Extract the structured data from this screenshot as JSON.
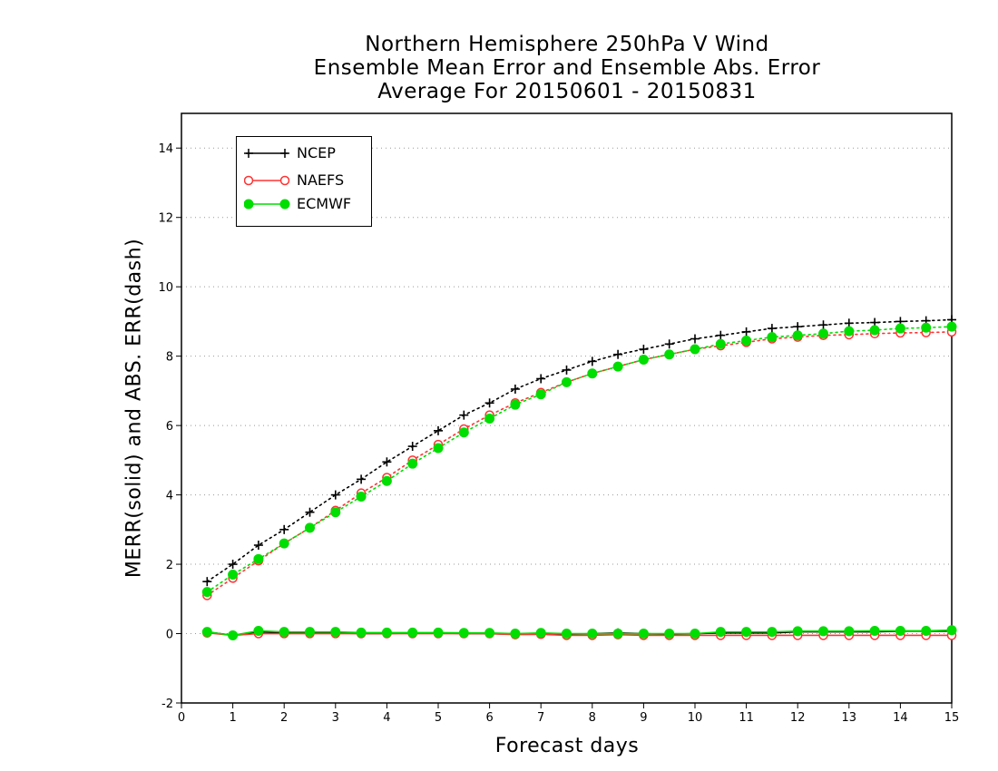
{
  "chart_data": {
    "type": "line",
    "title": [
      "Northern Hemisphere 250hPa V Wind",
      "Ensemble Mean Error and Ensemble Abs. Error",
      "Average For 20150601 - 20150831"
    ],
    "xlabel": "Forecast days",
    "ylabel": "MERR(solid) and ABS. ERR(dash)",
    "xlim": [
      0,
      15
    ],
    "ylim": [
      -2,
      15
    ],
    "xticks": [
      0,
      1,
      2,
      3,
      4,
      5,
      6,
      7,
      8,
      9,
      10,
      11,
      12,
      13,
      14,
      15
    ],
    "yticks": [
      -2,
      0,
      2,
      4,
      6,
      8,
      10,
      12,
      14
    ],
    "ytick_labels": [
      "-2",
      "0",
      "2",
      "4",
      "6",
      "8",
      "10",
      "12",
      "14"
    ],
    "grid": "horizontal dotted",
    "legend_position": "top-left",
    "x": [
      0.5,
      1,
      1.5,
      2,
      2.5,
      3,
      3.5,
      4,
      4.5,
      5,
      5.5,
      6,
      6.5,
      7,
      7.5,
      8,
      8.5,
      9,
      9.5,
      10,
      10.5,
      11,
      11.5,
      12,
      12.5,
      13,
      13.5,
      14,
      14.5,
      15
    ],
    "series": [
      {
        "name": "NCEP",
        "color": "#000000",
        "marker": "plus",
        "abs_err": [
          1.5,
          2.0,
          2.55,
          3.0,
          3.5,
          4.0,
          4.45,
          4.95,
          5.4,
          5.85,
          6.3,
          6.65,
          7.05,
          7.35,
          7.6,
          7.85,
          8.05,
          8.2,
          8.35,
          8.5,
          8.6,
          8.7,
          8.8,
          8.85,
          8.9,
          8.95,
          8.97,
          9.0,
          9.02,
          9.05
        ],
        "mean_err": [
          0.05,
          -0.05,
          0.05,
          0.02,
          0.02,
          0.02,
          0.0,
          0.0,
          0.02,
          0.02,
          0.0,
          0.0,
          -0.02,
          0.0,
          -0.02,
          0.0,
          0.02,
          0.0,
          -0.02,
          0.0,
          0.02,
          0.02,
          0.02,
          0.05,
          0.05,
          0.05,
          0.05,
          0.07,
          0.07,
          0.07
        ]
      },
      {
        "name": "NAEFS",
        "color": "#ff3333",
        "marker": "open-circle",
        "abs_err": [
          1.1,
          1.6,
          2.1,
          2.6,
          3.05,
          3.55,
          4.05,
          4.5,
          5.0,
          5.45,
          5.9,
          6.3,
          6.65,
          6.95,
          7.25,
          7.5,
          7.7,
          7.9,
          8.05,
          8.2,
          8.3,
          8.4,
          8.5,
          8.55,
          8.6,
          8.62,
          8.65,
          8.67,
          8.68,
          8.7
        ],
        "mean_err": [
          0.02,
          -0.05,
          0.0,
          0.0,
          0.0,
          0.0,
          0.0,
          0.0,
          0.0,
          0.0,
          0.0,
          0.0,
          -0.03,
          -0.02,
          -0.05,
          -0.05,
          -0.03,
          -0.05,
          -0.05,
          -0.05,
          -0.05,
          -0.05,
          -0.05,
          -0.05,
          -0.05,
          -0.05,
          -0.05,
          -0.05,
          -0.05,
          -0.05
        ]
      },
      {
        "name": "ECMWF",
        "color": "#00dd00",
        "marker": "filled-circle",
        "abs_err": [
          1.2,
          1.7,
          2.15,
          2.6,
          3.05,
          3.5,
          3.95,
          4.4,
          4.9,
          5.35,
          5.8,
          6.2,
          6.6,
          6.9,
          7.25,
          7.5,
          7.7,
          7.9,
          8.05,
          8.2,
          8.35,
          8.45,
          8.55,
          8.6,
          8.65,
          8.72,
          8.75,
          8.8,
          8.82,
          8.85
        ],
        "mean_err": [
          0.05,
          -0.05,
          0.08,
          0.05,
          0.05,
          0.05,
          0.03,
          0.03,
          0.03,
          0.03,
          0.02,
          0.02,
          0.0,
          0.02,
          0.0,
          0.0,
          0.0,
          0.0,
          0.0,
          0.0,
          0.05,
          0.05,
          0.05,
          0.07,
          0.07,
          0.07,
          0.08,
          0.08,
          0.08,
          0.1
        ]
      }
    ]
  },
  "legend": {
    "items": [
      {
        "label": "NCEP"
      },
      {
        "label": "NAEFS"
      },
      {
        "label": "ECMWF"
      }
    ]
  }
}
